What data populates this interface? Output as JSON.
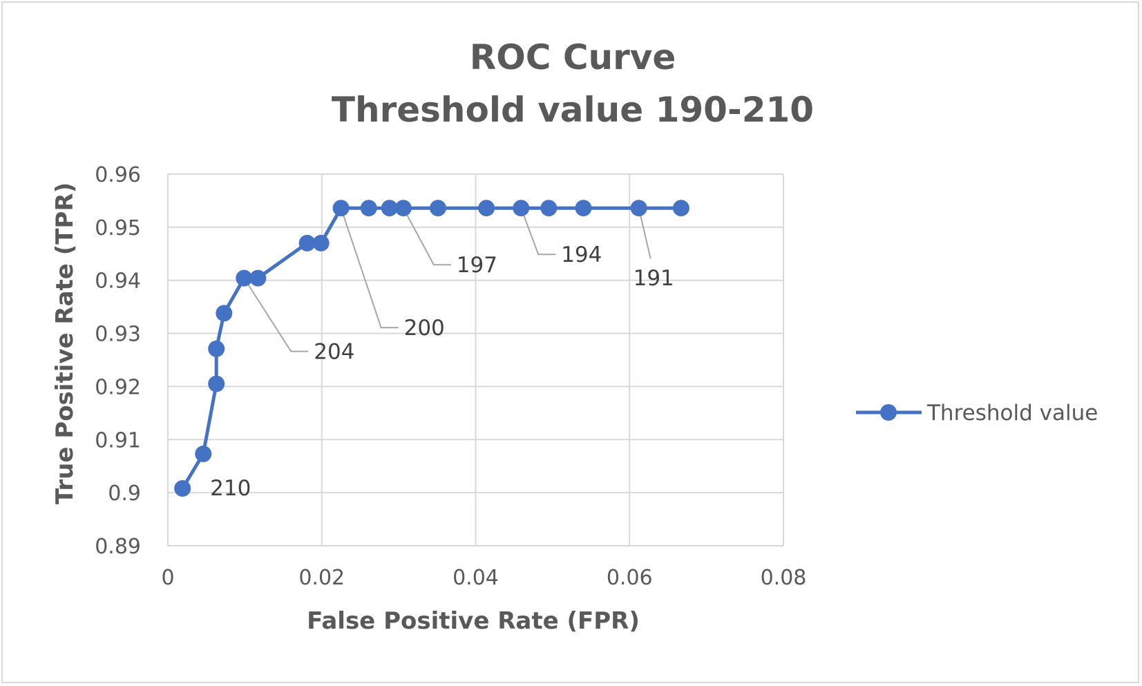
{
  "chart_data": {
    "type": "scatter",
    "title": "ROC Curve",
    "subtitle": "Threshold value 190-210",
    "xlabel": "False Positive Rate (FPR)",
    "ylabel": "True Positive Rate (TPR)",
    "xlim": [
      0,
      0.08
    ],
    "ylim": [
      0.89,
      0.96
    ],
    "xticks": [
      0,
      0.02,
      0.04,
      0.06,
      0.08
    ],
    "xtick_labels": [
      "0",
      "0.02",
      "0.04",
      "0.06",
      "0.08"
    ],
    "yticks": [
      0.89,
      0.9,
      0.91,
      0.92,
      0.93,
      0.94,
      0.95,
      0.96
    ],
    "ytick_labels": [
      "0.89",
      "0.9",
      "0.91",
      "0.92",
      "0.93",
      "0.94",
      "0.95",
      "0.96"
    ],
    "grid": true,
    "legend_position": "right",
    "series": [
      {
        "name": "Threshold value",
        "color": "#4472c4",
        "marker": "circle",
        "line": true,
        "points": [
          {
            "x": 0.0019,
            "y": 0.9008
          },
          {
            "x": 0.0046,
            "y": 0.9073
          },
          {
            "x": 0.0063,
            "y": 0.9205
          },
          {
            "x": 0.0063,
            "y": 0.9271
          },
          {
            "x": 0.0073,
            "y": 0.9338
          },
          {
            "x": 0.0099,
            "y": 0.9404
          },
          {
            "x": 0.0117,
            "y": 0.9404
          },
          {
            "x": 0.0181,
            "y": 0.947
          },
          {
            "x": 0.0199,
            "y": 0.947
          },
          {
            "x": 0.0225,
            "y": 0.9536
          },
          {
            "x": 0.0261,
            "y": 0.9536
          },
          {
            "x": 0.0288,
            "y": 0.9536
          },
          {
            "x": 0.0306,
            "y": 0.9536
          },
          {
            "x": 0.0351,
            "y": 0.9536
          },
          {
            "x": 0.0414,
            "y": 0.9536
          },
          {
            "x": 0.0459,
            "y": 0.9536
          },
          {
            "x": 0.0495,
            "y": 0.9536
          },
          {
            "x": 0.054,
            "y": 0.9536
          },
          {
            "x": 0.0612,
            "y": 0.9536
          },
          {
            "x": 0.0667,
            "y": 0.9536
          }
        ]
      }
    ],
    "annotations": [
      {
        "text": "210",
        "point_index": 0
      },
      {
        "text": "204",
        "point_index": 5
      },
      {
        "text": "200",
        "point_index": 9
      },
      {
        "text": "197",
        "point_index": 12
      },
      {
        "text": "194",
        "point_index": 15
      },
      {
        "text": "191",
        "point_index": 18
      }
    ]
  }
}
